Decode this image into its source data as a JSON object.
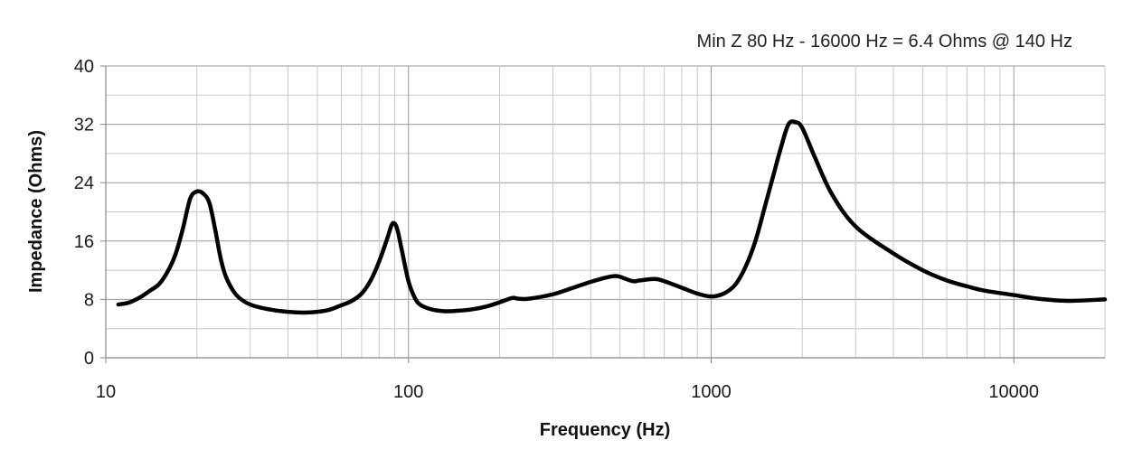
{
  "chart_data": {
    "type": "line",
    "title": "",
    "annotation": "Min Z  80 Hz - 16000 Hz = 6.4 Ohms @ 140 Hz",
    "xlabel": "Frequency (Hz)",
    "ylabel": "Impedance (Ohms)",
    "x_scale": "log",
    "xlim": [
      10,
      20000
    ],
    "ylim": [
      0,
      40
    ],
    "x_ticks": [
      10,
      100,
      1000,
      10000
    ],
    "x_tick_labels": [
      "10",
      "100",
      "1000",
      "10000"
    ],
    "y_ticks": [
      0,
      8,
      16,
      24,
      32,
      40
    ],
    "y_tick_labels": [
      "0",
      "8",
      "16",
      "24",
      "32",
      "40"
    ],
    "y_minor_step": 4,
    "grid": true,
    "colors": {
      "line": "#000000",
      "major_grid": "#9a9a9a",
      "minor_grid": "#c8c8c8"
    },
    "series": [
      {
        "x": [
          11,
          12,
          13,
          14,
          15,
          16,
          17,
          18,
          19,
          20,
          21,
          22,
          23,
          24,
          25,
          27,
          30,
          35,
          40,
          45,
          50,
          55,
          60,
          65,
          70,
          75,
          80,
          85,
          88,
          90,
          92,
          95,
          100,
          105,
          110,
          120,
          130,
          140,
          160,
          180,
          200,
          220,
          230,
          250,
          300,
          350,
          400,
          450,
          480,
          500,
          550,
          580,
          650,
          700,
          800,
          900,
          1000,
          1100,
          1200,
          1300,
          1400,
          1500,
          1600,
          1700,
          1800,
          1900,
          2000,
          2200,
          2500,
          3000,
          4000,
          5000,
          6000,
          7000,
          8000,
          10000,
          12000,
          15000,
          20000
        ],
        "y": [
          7.3,
          7.6,
          8.3,
          9.2,
          10.1,
          11.8,
          14.2,
          17.8,
          21.8,
          22.8,
          22.5,
          21.2,
          17.5,
          13.5,
          11.0,
          8.6,
          7.3,
          6.6,
          6.3,
          6.2,
          6.3,
          6.6,
          7.2,
          7.8,
          8.8,
          10.6,
          13.2,
          16.3,
          18.2,
          18.4,
          17.5,
          14.8,
          10.5,
          8.2,
          7.2,
          6.6,
          6.4,
          6.4,
          6.6,
          7.0,
          7.6,
          8.2,
          8.1,
          8.1,
          8.7,
          9.6,
          10.4,
          11.0,
          11.2,
          11.1,
          10.5,
          10.6,
          10.8,
          10.5,
          9.6,
          8.8,
          8.4,
          8.8,
          10.0,
          12.5,
          16.0,
          20.5,
          24.8,
          28.8,
          32.0,
          32.3,
          31.5,
          27.5,
          22.5,
          18.0,
          14.3,
          12.0,
          10.6,
          9.8,
          9.2,
          8.6,
          8.1,
          7.8,
          8.0
        ]
      }
    ]
  }
}
